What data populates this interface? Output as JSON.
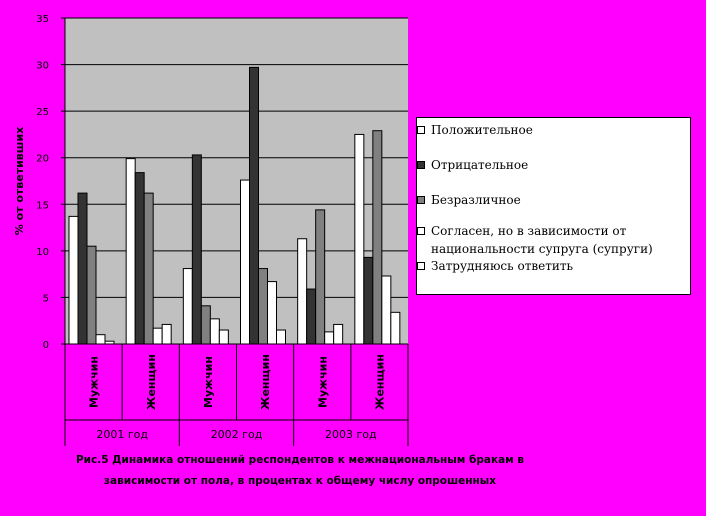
{
  "chart_data": {
    "type": "bar",
    "ylabel": "% от ответивших",
    "ylim": [
      0,
      35
    ],
    "yticks": [
      0,
      5,
      10,
      15,
      20,
      25,
      30,
      35
    ],
    "grid": true,
    "legend_position": "right",
    "groups": [
      "2001 год",
      "2002 год",
      "2003 год"
    ],
    "categories": [
      "Мужчин",
      "Женщин",
      "Мужчин",
      "Женщин",
      "Мужчин",
      "Женщин"
    ],
    "series": [
      {
        "name": "Положительное",
        "color": "#ffffff",
        "values": [
          13.7,
          19.9,
          8.1,
          17.6,
          11.3,
          22.5
        ]
      },
      {
        "name": "Отрицательное",
        "color": "#333333",
        "values": [
          16.2,
          18.4,
          20.3,
          29.7,
          5.9,
          9.3
        ]
      },
      {
        "name": "Безразличное",
        "color": "#808080",
        "values": [
          10.5,
          16.2,
          4.1,
          8.1,
          14.4,
          22.9
        ]
      },
      {
        "name": "Согласен, но в зависимости от национальности супруга (супруги)",
        "color": "#ffffff",
        "values": [
          1.0,
          1.7,
          2.7,
          6.7,
          1.3,
          7.3
        ]
      },
      {
        "name": "Затрудняюсь ответить",
        "color": "#ffffff",
        "values": [
          0.3,
          2.1,
          1.5,
          1.5,
          2.1,
          3.4
        ]
      }
    ]
  },
  "caption": {
    "line1": "Рис.5 Динамика отношений респондентов к межнациональным бракам в",
    "line2": "зависимости от пола, в процентах к общему числу опрошенных"
  }
}
